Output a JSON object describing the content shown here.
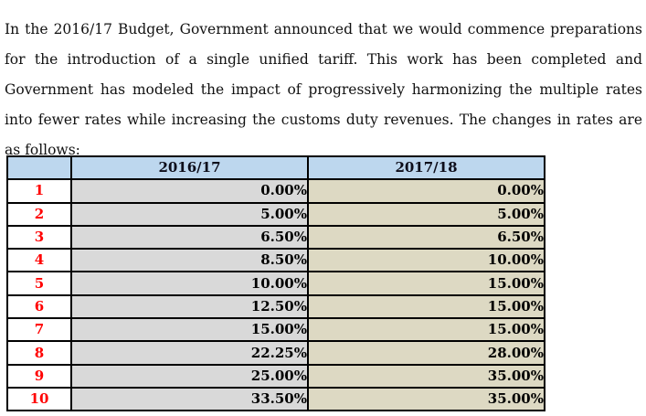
{
  "document": {
    "paragraph": "In the 2016/17 Budget, Government announced that we would commence preparations for the introduction of a single unified tariff. This work has been completed and Government has modeled the impact of progressively harmonizing the multiple rates into fewer rates while increasing the customs duty revenues. The changes in rates are as follows:"
  },
  "table": {
    "columns": [
      "",
      "2016/17",
      "2017/18"
    ],
    "rows": [
      {
        "num": "1",
        "r2016": "0.00%",
        "r2017": "0.00%"
      },
      {
        "num": "2",
        "r2016": "5.00%",
        "r2017": "5.00%"
      },
      {
        "num": "3",
        "r2016": "6.50%",
        "r2017": "6.50%"
      },
      {
        "num": "4",
        "r2016": "8.50%",
        "r2017": "10.00%"
      },
      {
        "num": "5",
        "r2016": "10.00%",
        "r2017": "15.00%"
      },
      {
        "num": "6",
        "r2016": "12.50%",
        "r2017": "15.00%"
      },
      {
        "num": "7",
        "r2016": "15.00%",
        "r2017": "15.00%"
      },
      {
        "num": "8",
        "r2016": "22.25%",
        "r2017": "28.00%"
      },
      {
        "num": "9",
        "r2016": "25.00%",
        "r2017": "35.00%"
      },
      {
        "num": "10",
        "r2016": "33.50%",
        "r2017": "35.00%"
      }
    ],
    "colors": {
      "header_bg": "#BDD7EE",
      "col_2016_bg": "#D9D9D9",
      "col_2017_bg": "#DDD9C3",
      "row_number_color": "#FF0000",
      "border": "#000000"
    }
  }
}
